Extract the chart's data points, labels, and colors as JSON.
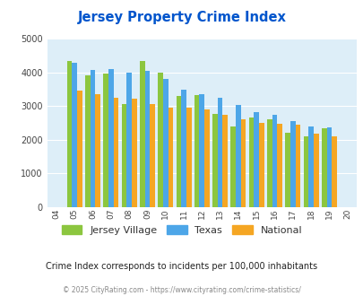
{
  "title": "Jersey Property Crime Index",
  "years": [
    2004,
    2005,
    2006,
    2007,
    2008,
    2009,
    2010,
    2011,
    2012,
    2013,
    2014,
    2015,
    2016,
    2017,
    2018,
    2019,
    2020
  ],
  "jersey_village": [
    null,
    4330,
    3900,
    3950,
    3060,
    4340,
    3980,
    3300,
    3320,
    2760,
    2390,
    2660,
    2610,
    2200,
    2090,
    2330,
    null
  ],
  "texas": [
    null,
    4290,
    4060,
    4090,
    3990,
    4030,
    3800,
    3490,
    3350,
    3240,
    3040,
    2830,
    2750,
    2560,
    2380,
    2370,
    null
  ],
  "national": [
    null,
    3460,
    3350,
    3240,
    3210,
    3050,
    2960,
    2950,
    2900,
    2740,
    2610,
    2500,
    2460,
    2450,
    2190,
    2110,
    null
  ],
  "bar_colors": {
    "jersey_village": "#8cc63f",
    "texas": "#4da6e8",
    "national": "#f5a623"
  },
  "ylim": [
    0,
    5000
  ],
  "yticks": [
    0,
    1000,
    2000,
    3000,
    4000,
    5000
  ],
  "bg_color": "#ddeef8",
  "subtitle": "Crime Index corresponds to incidents per 100,000 inhabitants",
  "footer": "© 2025 CityRating.com - https://www.cityrating.com/crime-statistics/",
  "title_color": "#0055cc",
  "subtitle_color": "#222222",
  "footer_color": "#888888",
  "footer_link_color": "#4488cc",
  "legend_labels": [
    "Jersey Village",
    "Texas",
    "National"
  ]
}
